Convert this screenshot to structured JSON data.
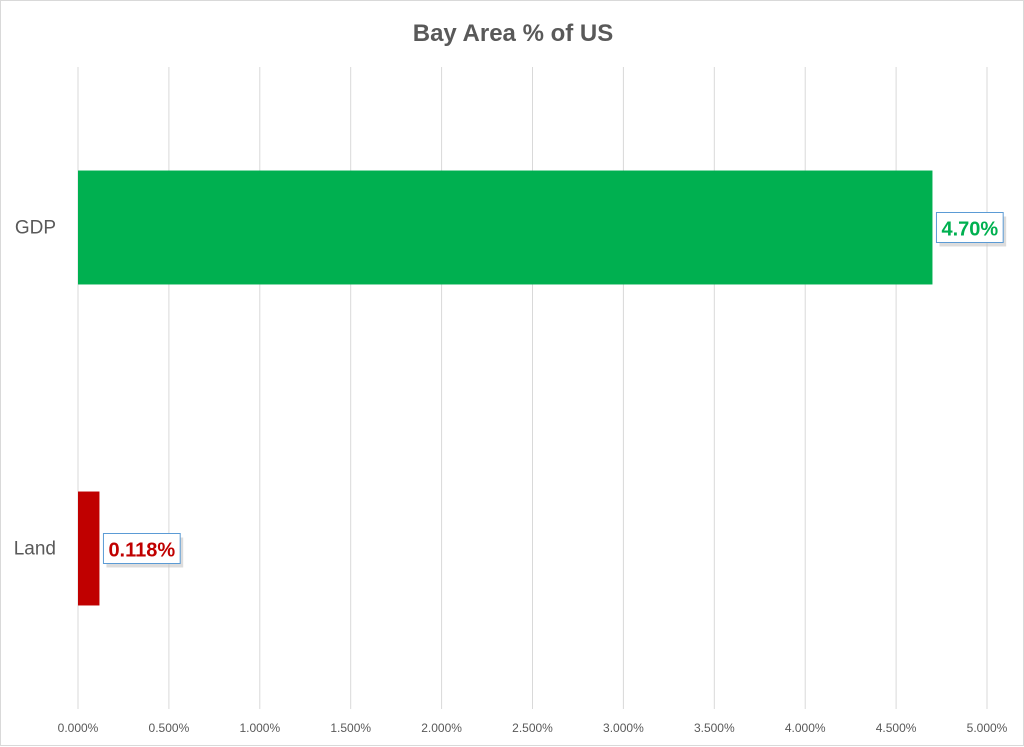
{
  "chart_data": {
    "type": "bar",
    "orientation": "horizontal",
    "title": "Bay Area % of US",
    "categories": [
      "GDP",
      "Land"
    ],
    "values": [
      4.7,
      0.118
    ],
    "data_labels": [
      "4.70%",
      "0.118%"
    ],
    "colors": [
      "#00b050",
      "#c00000"
    ],
    "label_colors": [
      "#00b050",
      "#c00000"
    ],
    "xlim": [
      0,
      5
    ],
    "x_ticks": [
      0,
      0.5,
      1,
      1.5,
      2,
      2.5,
      3,
      3.5,
      4,
      4.5,
      5
    ],
    "x_tick_labels": [
      "0.000%",
      "0.500%",
      "1.000%",
      "1.500%",
      "2.000%",
      "2.500%",
      "3.000%",
      "3.500%",
      "4.000%",
      "4.500%",
      "5.000%"
    ],
    "xlabel": "",
    "ylabel": "",
    "grid": "vertical",
    "legend": "none"
  }
}
